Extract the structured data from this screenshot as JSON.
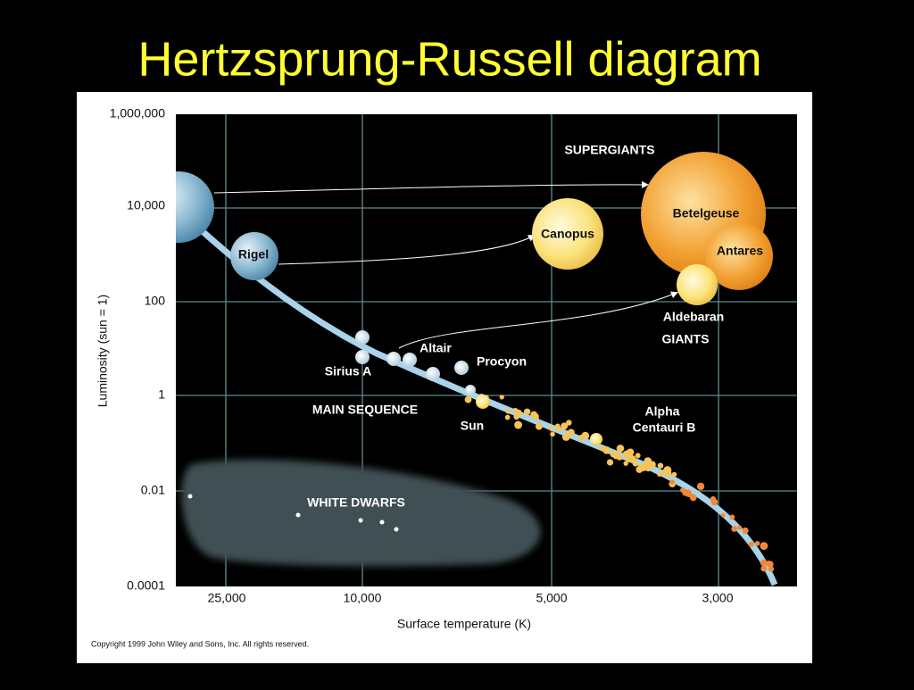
{
  "header": {
    "title": "Hertzsprung-Russell diagram"
  },
  "axes": {
    "y_label": "Luminosity (sun = 1)",
    "x_label": "Surface temperature (K)",
    "y_ticks": [
      "1,000,000",
      "10,000",
      "100",
      "1",
      "0.01",
      "0.0001"
    ],
    "x_ticks": [
      "25,000",
      "10,000",
      "5,000",
      "3,000"
    ]
  },
  "regions": [
    "SUPERGIANTS",
    "GIANTS",
    "MAIN SEQUENCE",
    "WHITE DWARFS"
  ],
  "stars": [
    "Rigel",
    "Canopus",
    "Betelgeuse",
    "Antares",
    "Aldebaran",
    "Altair",
    "Procyon",
    "Sirius A",
    "Sun",
    "Alpha",
    "Centauri B"
  ],
  "copyright": "Copyright 1999 John Wiley and Sons, Inc. All rights reserved."
}
